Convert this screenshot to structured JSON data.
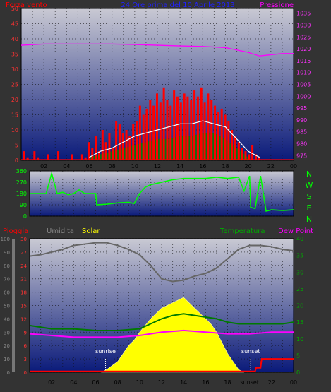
{
  "colors": {
    "background": "#333333",
    "plot_top": "#c9c9d3",
    "plot_bottom": "#0a1a7a",
    "frame": "#000000",
    "grid": "#111111",
    "axis_text": "#000000",
    "wind": "#ff0000",
    "gust": "#ff0000",
    "avg_line": "#ffffff",
    "direction_fill": "#0a7a0a",
    "pressure": "#ff00ff",
    "winddir": "#00ff00",
    "rain": "#ff0000",
    "humidity": "#666666",
    "solar": "#ffff00",
    "temperature": "#007a00",
    "dewpoint": "#ff00ff",
    "sun_marker": "#ffffff"
  },
  "header": {
    "left_title": "Forza vento",
    "center_title": "24 Ore prima del 10 Aprile 2013",
    "right_title": "Pressione"
  },
  "compass": [
    "N",
    "W",
    "S",
    "E",
    "N"
  ],
  "legend2": {
    "rain": "Pioggia",
    "humidity": "Umidita",
    "solar": "Solar",
    "temperature": "Temperatura",
    "dewpoint": "Dew Point"
  },
  "chart_data": [
    {
      "type": "line",
      "id": "wind_pressure",
      "x_tick_labels": [
        "02",
        "04",
        "06",
        "08",
        "10",
        "12",
        "14",
        "16",
        "18",
        "20",
        "22",
        "00"
      ],
      "xlim": [
        0,
        24
      ],
      "left_axis": {
        "ylim": [
          0,
          50
        ],
        "ticks": [
          "0",
          "5",
          "10",
          "15",
          "20",
          "25",
          "30",
          "35",
          "40",
          "45",
          "50"
        ]
      },
      "right_axis": {
        "ylim": [
          973,
          1037
        ],
        "ticks": [
          "975",
          "980",
          "985",
          "990",
          "995",
          "1000",
          "1005",
          "1010",
          "1015",
          "1020",
          "1025",
          "1030",
          "1035"
        ]
      },
      "series": [
        {
          "name": "Forza vento",
          "axis": "left",
          "kind": "bars_gust",
          "x": [
            0.3,
            0.6,
            0.9,
            1.2,
            1.5,
            2.4,
            3.3,
            3.6,
            4.5,
            5.4,
            5.7,
            6.0,
            6.3,
            6.6,
            6.9,
            7.2,
            7.5,
            7.8,
            8.1,
            8.4,
            8.7,
            9.0,
            9.3,
            9.6,
            9.9,
            10.2,
            10.5,
            10.8,
            11.1,
            11.4,
            11.7,
            12.0,
            12.3,
            12.6,
            12.9,
            13.2,
            13.5,
            13.8,
            14.1,
            14.4,
            14.7,
            15.0,
            15.3,
            15.6,
            15.9,
            16.2,
            16.5,
            16.8,
            17.1,
            17.4,
            17.7,
            18.0,
            18.3,
            18.6,
            18.9,
            19.2,
            19.5,
            19.8,
            20.1,
            20.4,
            20.7,
            21.0,
            21.3
          ],
          "values": [
            3,
            1,
            0,
            3,
            1,
            2,
            3,
            0,
            2,
            2,
            1,
            6,
            4,
            8,
            3,
            10,
            6,
            9,
            4,
            13,
            12,
            9,
            10,
            8,
            12,
            13,
            18,
            15,
            17,
            20,
            18,
            22,
            19,
            24,
            20,
            18,
            23,
            21,
            19,
            22,
            21,
            20,
            23,
            21,
            24,
            19,
            22,
            20,
            18,
            16,
            17,
            15,
            13,
            10,
            8,
            6,
            4,
            3,
            2,
            5,
            2,
            1,
            0
          ]
        },
        {
          "name": "avg",
          "axis": "left",
          "kind": "line",
          "x": [
            6,
            7,
            8,
            9,
            10,
            11,
            12,
            13,
            14,
            15,
            16,
            17,
            18,
            19,
            20,
            21
          ],
          "values": [
            1,
            3,
            4,
            6,
            8,
            9,
            10,
            11,
            12,
            12,
            13,
            12,
            11,
            7,
            3,
            1
          ]
        },
        {
          "name": "dir",
          "axis": "left",
          "kind": "area",
          "x": [
            6,
            7,
            8,
            9,
            10,
            11,
            12,
            13,
            14,
            15,
            16,
            17,
            18,
            19,
            20
          ],
          "values": [
            1,
            2,
            3,
            4,
            5,
            6,
            7,
            7,
            8,
            8,
            9,
            9,
            7,
            4,
            1
          ]
        },
        {
          "name": "Pressione",
          "axis": "right",
          "kind": "line",
          "x": [
            0,
            2,
            4,
            6,
            8,
            10,
            12,
            14,
            16,
            18,
            19,
            20,
            21,
            22,
            23,
            24
          ],
          "values": [
            1021.5,
            1022,
            1022,
            1022,
            1022,
            1021.8,
            1021.5,
            1021.2,
            1021,
            1020.5,
            1019.5,
            1018.5,
            1017,
            1017.5,
            1018,
            1018
          ]
        }
      ]
    },
    {
      "type": "line",
      "id": "wind_direction",
      "xlim": [
        0,
        24
      ],
      "ylim": [
        0,
        360
      ],
      "ticks": [
        "0",
        "90",
        "180",
        "270",
        "360"
      ],
      "series": [
        {
          "name": "Direzione",
          "x": [
            0,
            1.5,
            2,
            2.5,
            3,
            3.5,
            4,
            4.5,
            5,
            5.5,
            6,
            6.1,
            7,
            8,
            9,
            9.5,
            10,
            10.5,
            11,
            12,
            13,
            14,
            15,
            16,
            17,
            18,
            19,
            19.5,
            20,
            20.1,
            20.5,
            21,
            21.5,
            22,
            23,
            24
          ],
          "values": [
            180,
            180,
            340,
            180,
            190,
            170,
            180,
            210,
            180,
            180,
            180,
            90,
            95,
            105,
            110,
            100,
            180,
            230,
            250,
            270,
            290,
            300,
            300,
            300,
            310,
            300,
            310,
            200,
            320,
            70,
            60,
            320,
            40,
            50,
            45,
            50
          ]
        }
      ]
    },
    {
      "type": "line",
      "id": "temp_humidity_solar",
      "xlim": [
        0,
        24
      ],
      "left_outer_axis": {
        "ylim": [
          0,
          100
        ],
        "ticks": [
          "0",
          "10",
          "20",
          "30",
          "40",
          "50",
          "60",
          "70",
          "80",
          "90",
          "100"
        ]
      },
      "left_inner_axis": {
        "ylim": [
          0,
          30
        ],
        "ticks": [
          "0",
          "3",
          "6",
          "9",
          "12",
          "15",
          "18",
          "21",
          "24",
          "27",
          "30"
        ]
      },
      "right_axis": {
        "ylim": [
          0,
          40
        ],
        "ticks": [
          "0",
          "5",
          "10",
          "15",
          "20",
          "25",
          "30",
          "35",
          "40"
        ]
      },
      "markers": [
        {
          "label": "sunrise",
          "x": 6.9
        },
        {
          "label": "sunset",
          "x": 20.1
        }
      ],
      "series": [
        {
          "name": "Umidita",
          "axis": "left_outer",
          "x": [
            0,
            1,
            2,
            3,
            4,
            5,
            6,
            7,
            8,
            9,
            10,
            11,
            12,
            13,
            14,
            15,
            16,
            17,
            18,
            19,
            20,
            21,
            22,
            23,
            24
          ],
          "values": [
            87,
            88,
            90,
            92,
            95,
            96,
            97,
            97,
            95,
            92,
            88,
            80,
            70,
            68,
            69,
            72,
            74,
            78,
            85,
            92,
            95,
            95,
            94,
            92,
            91
          ]
        },
        {
          "name": "Solar",
          "axis": "left_outer",
          "kind": "area",
          "x": [
            6.5,
            7,
            8,
            8.5,
            9,
            9.5,
            10,
            10.5,
            11,
            11.5,
            12,
            12.5,
            13,
            13.5,
            14,
            14.5,
            15,
            15.5,
            16,
            16.5,
            17,
            17.5,
            18,
            18.5,
            19,
            19.5
          ],
          "values": [
            0,
            2,
            8,
            14,
            20,
            24,
            30,
            35,
            40,
            44,
            48,
            50,
            52,
            54,
            56,
            52,
            48,
            44,
            40,
            36,
            30,
            22,
            14,
            8,
            2,
            0
          ]
        },
        {
          "name": "Temperatura",
          "axis": "right",
          "x": [
            0,
            2,
            4,
            6,
            8,
            10,
            11,
            12,
            13,
            14,
            15,
            16,
            17,
            18,
            19,
            20,
            21,
            22,
            23,
            24
          ],
          "values": [
            14,
            13,
            13,
            12.5,
            12.5,
            13,
            14.5,
            16,
            17,
            17.5,
            17,
            16.5,
            16,
            15,
            14.5,
            14.5,
            14.5,
            14.5,
            14.5,
            15
          ]
        },
        {
          "name": "Dew Point",
          "axis": "right",
          "x": [
            0,
            2,
            4,
            6,
            8,
            10,
            12,
            14,
            16,
            18,
            20,
            22,
            24
          ],
          "values": [
            11.5,
            11,
            10.5,
            10.5,
            10.5,
            11,
            12,
            12.5,
            12,
            11.5,
            11.5,
            12,
            12
          ]
        },
        {
          "name": "Pioggia",
          "axis": "left_inner",
          "kind": "step",
          "x": [
            0,
            20.5,
            20.6,
            21,
            21.1,
            24
          ],
          "values": [
            0.2,
            0.2,
            1,
            1,
            3,
            3
          ]
        }
      ]
    }
  ]
}
